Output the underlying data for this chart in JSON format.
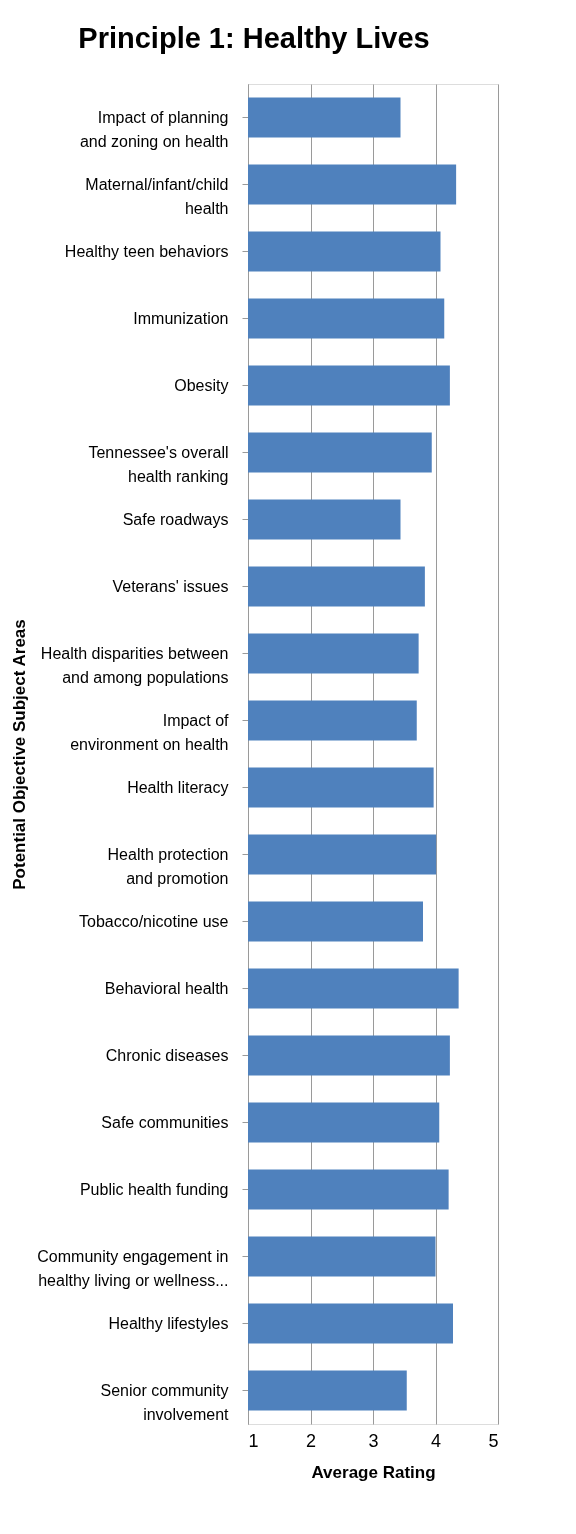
{
  "chart_data": {
    "type": "bar",
    "orientation": "horizontal",
    "title": "Principle 1: Healthy Lives",
    "xlabel": "Average Rating",
    "ylabel": "Potential Objective Subject Areas",
    "categories": [
      "Impact of planning and zoning on health",
      "Maternal/infant/child health",
      "Healthy teen behaviors",
      "Immunization",
      "Obesity",
      "Tennessee's overall health ranking",
      "Safe roadways",
      "Veterans' issues",
      "Health disparities between and among populations",
      "Impact of environment on health",
      "Health literacy",
      "Health protection and promotion",
      "Tobacco/nicotine use",
      "Behavioral health",
      "Chronic diseases",
      "Safe communities",
      "Public health funding",
      "Community engagement in healthy living or wellness...",
      "Healthy lifestyles",
      "Senior community involvement"
    ],
    "values": [
      3.44,
      4.33,
      4.08,
      4.14,
      4.23,
      3.94,
      3.44,
      3.83,
      3.73,
      3.7,
      3.97,
      4.01,
      3.8,
      4.37,
      4.23,
      4.06,
      4.21,
      4.0,
      4.28,
      3.54
    ],
    "color": "#4f81bd",
    "xlim": [
      1,
      5
    ],
    "xticks": [
      1,
      2,
      3,
      4,
      5
    ],
    "grid": "x"
  }
}
